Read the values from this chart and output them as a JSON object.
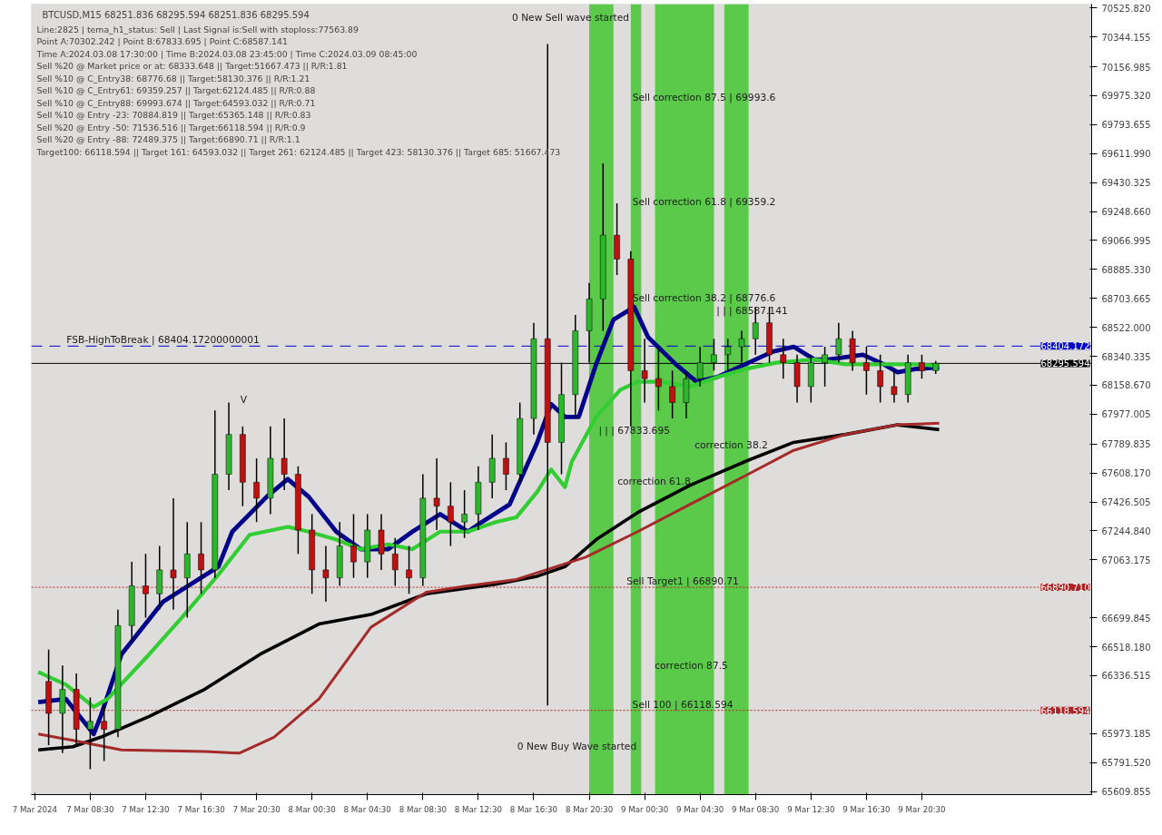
{
  "chart_data": {
    "type": "candlestick",
    "title": "BTCUSD,M15  68251.836 68295.594 68251.836 68295.594",
    "annotations": [
      "Line:2825 | tema_h1_status: Sell | Last Signal is:Sell with stoploss:77563.89",
      "Point A:70302.242 | Point B:67833.695 | Point C:68587.141",
      "Time A:2024.03.08 17:30:00 | Time B:2024.03.08 23:45:00 | Time C:2024.03.09 08:45:00",
      "Sell %20 @ Market price or at: 68333.648 || Target:51667.473 || R/R:1.81",
      "Sell %10 @ C_Entry38: 68776.68 || Target:58130.376 || R/R:1.21",
      "Sell %10 @ C_Entry61: 69359.257 || Target:62124.485 || R/R:0.88",
      "Sell %10 @ C_Entry88: 69993.674 || Target:64593.032 || R/R:0.71",
      "Sell %10 @ Entry -23: 70884.819 || Target:65365.148 || R/R:0.83",
      "Sell %20 @ Entry -50: 71536.516 || Target:66118.594 || R/R:0.9",
      "Sell %20 @ Entry -88: 72489.375 || Target:66890.71 || R/R:1.1",
      "Target100: 66118.594 || Target 161: 64593.032 || Target 261: 62124.485 || Target 423: 58130.376 || Target 685: 51667.473",
      "0 New Sell wave started",
      "0 New Buy Wave started",
      "Sell correction 87.5 | 69993.6",
      "Sell correction 61.8 | 69359.2",
      "Sell correction 38.2 | 68776.6",
      "correction 87.5",
      "V",
      "correction 38.2",
      "correction 61.8",
      {
        "text": "| | | 68587.141",
        "x": "2024-03-09T08:15",
        "y": 68587.141
      },
      {
        "text": "| | | 67833.695",
        "x": "2024-03-08T23:45",
        "y": 67833.695
      },
      {
        "text": "Sell Target1 | 66890.71",
        "x": "2024-03-09T03:15",
        "y": 66890.71
      },
      {
        "text": "Sell 100 | 66118.594",
        "x": "2024-03-09T03:15",
        "y": 66118.594
      },
      {
        "text": "FSB-HighToBreak | 68404.17200000001",
        "x": "2024-03-07T13:45",
        "y": 68404.172
      }
    ],
    "x": [
      "2024-03-07T05:30",
      "2024-03-07T06:30",
      "2024-03-07T07:30",
      "2024-03-07T08:30",
      "2024-03-07T09:30",
      "2024-03-07T10:30",
      "2024-03-07T11:30",
      "2024-03-07T12:30",
      "2024-03-07T13:30",
      "2024-03-07T14:30",
      "2024-03-07T15:30",
      "2024-03-07T16:30",
      "2024-03-07T17:30",
      "2024-03-07T18:30",
      "2024-03-07T19:30",
      "2024-03-07T20:30",
      "2024-03-07T21:30",
      "2024-03-07T22:30",
      "2024-03-07T23:30",
      "2024-03-08T00:30",
      "2024-03-08T01:30",
      "2024-03-08T02:30",
      "2024-03-08T03:30",
      "2024-03-08T04:30",
      "2024-03-08T05:30",
      "2024-03-08T06:30",
      "2024-03-08T07:30",
      "2024-03-08T08:30",
      "2024-03-08T09:30",
      "2024-03-08T10:30",
      "2024-03-08T11:30",
      "2024-03-08T12:30",
      "2024-03-08T13:30",
      "2024-03-08T14:30",
      "2024-03-08T15:30",
      "2024-03-08T16:30",
      "2024-03-08T17:30",
      "2024-03-08T18:30",
      "2024-03-08T19:30",
      "2024-03-08T20:30",
      "2024-03-08T21:30",
      "2024-03-08T22:30",
      "2024-03-08T23:30",
      "2024-03-09T00:30",
      "2024-03-09T01:30",
      "2024-03-09T02:30",
      "2024-03-09T03:30",
      "2024-03-09T04:30",
      "2024-03-09T05:30",
      "2024-03-09T06:30",
      "2024-03-09T07:30",
      "2024-03-09T08:30",
      "2024-03-09T09:30",
      "2024-03-09T10:30",
      "2024-03-09T11:30",
      "2024-03-09T12:30",
      "2024-03-09T13:30",
      "2024-03-09T14:30",
      "2024-03-09T15:30",
      "2024-03-09T16:30",
      "2024-03-09T17:30",
      "2024-03-09T18:30",
      "2024-03-09T19:30",
      "2024-03-09T20:30",
      "2024-03-09T21:30"
    ],
    "ohlc": [
      [
        66300,
        66500,
        65900,
        66100
      ],
      [
        66100,
        66400,
        65850,
        66250
      ],
      [
        66250,
        66350,
        65900,
        66000
      ],
      [
        66000,
        66200,
        65750,
        66050
      ],
      [
        66050,
        66150,
        65800,
        66000
      ],
      [
        66000,
        66750,
        65950,
        66650
      ],
      [
        66650,
        67050,
        66550,
        66900
      ],
      [
        66900,
        67100,
        66700,
        66850
      ],
      [
        66850,
        67150,
        66750,
        67000
      ],
      [
        67000,
        67450,
        66750,
        66950
      ],
      [
        66950,
        67300,
        66700,
        67100
      ],
      [
        67100,
        67300,
        66850,
        67000
      ],
      [
        67000,
        68000,
        66950,
        67600
      ],
      [
        67600,
        68050,
        67500,
        67850
      ],
      [
        67850,
        67900,
        67400,
        67550
      ],
      [
        67550,
        67700,
        67300,
        67450
      ],
      [
        67450,
        67900,
        67350,
        67700
      ],
      [
        67700,
        67950,
        67500,
        67600
      ],
      [
        67600,
        67650,
        67100,
        67250
      ],
      [
        67250,
        67350,
        66850,
        67000
      ],
      [
        67000,
        67150,
        66800,
        66950
      ],
      [
        66950,
        67300,
        66900,
        67150
      ],
      [
        67150,
        67350,
        66950,
        67050
      ],
      [
        67050,
        67350,
        66950,
        67250
      ],
      [
        67250,
        67350,
        67000,
        67100
      ],
      [
        67100,
        67200,
        66900,
        67000
      ],
      [
        67000,
        67150,
        66850,
        66950
      ],
      [
        66950,
        67600,
        66900,
        67450
      ],
      [
        67450,
        67700,
        67250,
        67400
      ],
      [
        67400,
        67550,
        67150,
        67300
      ],
      [
        67300,
        67500,
        67200,
        67350
      ],
      [
        67350,
        67650,
        67250,
        67550
      ],
      [
        67550,
        67850,
        67450,
        67700
      ],
      [
        67700,
        67800,
        67500,
        67600
      ],
      [
        67600,
        68050,
        67550,
        67950
      ],
      [
        67950,
        68550,
        67850,
        68450
      ],
      [
        68450,
        70300,
        66150,
        67800
      ],
      [
        67800,
        68300,
        67600,
        68100
      ],
      [
        68100,
        68600,
        67950,
        68500
      ],
      [
        68500,
        68800,
        68300,
        68700
      ],
      [
        68700,
        69550,
        68500,
        69100
      ],
      [
        69100,
        69300,
        68850,
        68950
      ],
      [
        68950,
        69000,
        67900,
        68250
      ],
      [
        68250,
        68450,
        68050,
        68200
      ],
      [
        68200,
        68400,
        68000,
        68150
      ],
      [
        68150,
        68250,
        67950,
        68050
      ],
      [
        68050,
        68250,
        67950,
        68200
      ],
      [
        68200,
        68400,
        68150,
        68300
      ],
      [
        68300,
        68450,
        68250,
        68350
      ],
      [
        68350,
        68450,
        68250,
        68400
      ],
      [
        68400,
        68500,
        68300,
        68450
      ],
      [
        68450,
        68650,
        68350,
        68550
      ],
      [
        68550,
        68650,
        68300,
        68350
      ],
      [
        68350,
        68450,
        68200,
        68300
      ],
      [
        68300,
        68350,
        68050,
        68150
      ],
      [
        68150,
        68350,
        68050,
        68300
      ],
      [
        68300,
        68400,
        68150,
        68350
      ],
      [
        68350,
        68550,
        68300,
        68450
      ],
      [
        68450,
        68500,
        68250,
        68300
      ],
      [
        68300,
        68400,
        68100,
        68250
      ],
      [
        68250,
        68350,
        68050,
        68150
      ],
      [
        68150,
        68250,
        68050,
        68100
      ],
      [
        68100,
        68350,
        68050,
        68300
      ],
      [
        68300,
        68350,
        68200,
        68250
      ],
      [
        68250,
        68310,
        68230,
        68296
      ]
    ],
    "series": [
      {
        "type": "line",
        "color": "#00008b",
        "x": [
          "2024-03-07T04:45",
          "2024-03-07T06:45",
          "2024-03-07T08:45",
          "2024-03-07T09:15",
          "2024-03-07T10:45",
          "2024-03-07T13:45",
          "2024-03-07T15:45",
          "2024-03-07T17:45",
          "2024-03-07T18:45",
          "2024-03-07T21:15",
          "2024-03-07T22:45",
          "2024-03-08T00:15",
          "2024-03-08T02:15",
          "2024-03-08T04:00",
          "2024-03-08T06:00",
          "2024-03-08T07:45",
          "2024-03-08T09:45",
          "2024-03-08T11:45",
          "2024-03-08T12:45",
          "2024-03-08T14:45",
          "2024-03-08T16:45",
          "2024-03-08T17:45",
          "2024-03-08T18:45",
          "2024-03-08T19:45",
          "2024-03-08T21:00",
          "2024-03-08T22:15",
          "2024-03-08T23:45",
          "2024-03-09T00:45",
          "2024-03-09T02:45",
          "2024-03-09T04:15",
          "2024-03-09T05:45",
          "2024-03-09T07:45",
          "2024-03-09T09:45",
          "2024-03-09T11:15",
          "2024-03-09T12:45",
          "2024-03-09T13:45",
          "2024-03-09T16:15",
          "2024-03-09T17:45",
          "2024-03-09T18:45",
          "2024-03-09T20:00",
          "2024-03-09T21:45"
        ],
        "values": [
          66170,
          66190,
          65970,
          66080,
          66470,
          66800,
          66910,
          67020,
          67240,
          67460,
          67570,
          67460,
          67240,
          67130,
          67130,
          67240,
          67350,
          67240,
          67300,
          67410,
          67800,
          68040,
          67960,
          67960,
          68290,
          68570,
          68650,
          68460,
          68290,
          68180,
          68210,
          68290,
          68370,
          68400,
          68320,
          68320,
          68350,
          68290,
          68240,
          68260,
          68270
        ]
      },
      {
        "type": "line",
        "color": "#32cd32",
        "x": [
          "2024-03-07T04:45",
          "2024-03-07T06:45",
          "2024-03-07T08:45",
          "2024-03-07T09:45",
          "2024-03-07T12:45",
          "2024-03-07T15:00",
          "2024-03-07T17:45",
          "2024-03-07T20:00",
          "2024-03-07T22:45",
          "2024-03-08T00:15",
          "2024-03-08T02:15",
          "2024-03-08T04:00",
          "2024-03-08T06:00",
          "2024-03-08T07:45",
          "2024-03-08T09:45",
          "2024-03-08T11:45",
          "2024-03-08T13:45",
          "2024-03-08T15:15",
          "2024-03-08T16:45",
          "2024-03-08T17:45",
          "2024-03-08T18:45",
          "2024-03-08T19:15",
          "2024-03-08T21:00",
          "2024-03-08T22:45",
          "2024-03-09T00:00",
          "2024-03-09T01:45",
          "2024-03-09T03:45",
          "2024-03-09T05:45",
          "2024-03-09T07:45",
          "2024-03-09T10:00",
          "2024-03-09T12:45",
          "2024-03-09T15:00",
          "2024-03-09T17:45",
          "2024-03-09T20:00",
          "2024-03-09T21:45"
        ],
        "values": [
          66360,
          66280,
          66140,
          66190,
          66470,
          66690,
          66970,
          67220,
          67270,
          67240,
          67190,
          67130,
          67160,
          67130,
          67240,
          67240,
          67300,
          67330,
          67490,
          67630,
          67520,
          67680,
          67960,
          68130,
          68180,
          68180,
          68150,
          68210,
          68260,
          68300,
          68320,
          68290,
          68290,
          68290,
          68280
        ]
      },
      {
        "type": "line",
        "color": "#000000",
        "x": [
          "2024-03-07T04:45",
          "2024-03-07T07:15",
          "2024-03-07T09:15",
          "2024-03-07T12:45",
          "2024-03-07T16:45",
          "2024-03-07T20:45",
          "2024-03-08T01:00",
          "2024-03-08T04:45",
          "2024-03-08T08:45",
          "2024-03-08T13:45",
          "2024-03-08T16:45",
          "2024-03-08T18:45",
          "2024-03-08T21:00",
          "2024-03-09T00:00",
          "2024-03-09T03:45",
          "2024-03-09T07:45",
          "2024-03-09T11:15",
          "2024-03-09T15:00",
          "2024-03-09T18:45",
          "2024-03-09T21:45"
        ],
        "values": [
          65870,
          65890,
          65950,
          66080,
          66250,
          66470,
          66660,
          66720,
          66850,
          66910,
          66960,
          67020,
          67190,
          67360,
          67530,
          67680,
          67800,
          67850,
          67910,
          67880
        ]
      },
      {
        "type": "line",
        "color": "#a52a2a",
        "x": [
          "2024-03-07T04:45",
          "2024-03-07T07:15",
          "2024-03-07T10:45",
          "2024-03-07T16:45",
          "2024-03-07T19:15",
          "2024-03-07T21:45",
          "2024-03-08T01:00",
          "2024-03-08T04:45",
          "2024-03-08T08:45",
          "2024-03-08T11:45",
          "2024-03-08T15:15",
          "2024-03-08T17:45",
          "2024-03-08T20:15",
          "2024-03-09T00:00",
          "2024-03-09T03:45",
          "2024-03-09T07:45",
          "2024-03-09T11:15",
          "2024-03-09T15:00",
          "2024-03-09T18:45",
          "2024-03-09T21:45"
        ],
        "values": [
          65970,
          65930,
          65870,
          65860,
          65850,
          65950,
          66190,
          66640,
          66860,
          66900,
          66940,
          67010,
          67080,
          67240,
          67410,
          67590,
          67750,
          67850,
          67910,
          67920
        ]
      }
    ],
    "ref_lines": [
      {
        "axis": "y",
        "value": 68404.172,
        "label": "68404.172",
        "color": "#0000cd",
        "line_style": "dashed"
      },
      {
        "axis": "y",
        "value": 68295.594,
        "label": "68295.594",
        "color": "#000000",
        "line_style": "solid"
      },
      {
        "axis": "y",
        "value": 66890.71,
        "label": "66890.710",
        "color": "#b22222",
        "line_style": "dotted"
      },
      {
        "axis": "y",
        "value": 66118.594,
        "label": "66118.594",
        "color": "#b22222",
        "line_style": "dotted"
      }
    ],
    "bands": [
      {
        "axis": "x",
        "from": "2024-03-08T20:30",
        "to": "2024-03-08T22:15",
        "color": "#4cc73a"
      },
      {
        "axis": "x",
        "from": "2024-03-08T23:30",
        "to": "2024-03-09T00:15",
        "color": "#4cc73a"
      },
      {
        "axis": "x",
        "from": "2024-03-09T01:15",
        "to": "2024-03-09T05:30",
        "color": "#4cc73a"
      },
      {
        "axis": "x",
        "from": "2024-03-09T06:15",
        "to": "2024-03-09T08:00",
        "color": "#4cc73a"
      }
    ],
    "xlim": [
      "2024-03-07T04:15",
      "2024-03-10T08:45"
    ],
    "xticks": [
      {
        "value": "2024-03-07T04:30",
        "label": "7 Mar 2024"
      },
      {
        "value": "2024-03-07T08:30",
        "label": "7 Mar 08:30"
      },
      {
        "value": "2024-03-07T12:30",
        "label": "7 Mar 12:30"
      },
      {
        "value": "2024-03-07T16:30",
        "label": "7 Mar 16:30"
      },
      {
        "value": "2024-03-07T20:30",
        "label": "7 Mar 20:30"
      },
      {
        "value": "2024-03-08T00:30",
        "label": "8 Mar 00:30"
      },
      {
        "value": "2024-03-08T04:30",
        "label": "8 Mar 04:30"
      },
      {
        "value": "2024-03-08T08:30",
        "label": "8 Mar 08:30"
      },
      {
        "value": "2024-03-08T12:30",
        "label": "8 Mar 12:30"
      },
      {
        "value": "2024-03-08T16:30",
        "label": "8 Mar 16:30"
      },
      {
        "value": "2024-03-08T20:30",
        "label": "8 Mar 20:30"
      },
      {
        "value": "2024-03-09T00:30",
        "label": "9 Mar 00:30"
      },
      {
        "value": "2024-03-09T04:30",
        "label": "9 Mar 04:30"
      },
      {
        "value": "2024-03-09T08:30",
        "label": "9 Mar 08:30"
      },
      {
        "value": "2024-03-09T12:30",
        "label": "9 Mar 12:30"
      },
      {
        "value": "2024-03-09T16:30",
        "label": "9 Mar 16:30"
      },
      {
        "value": "2024-03-09T20:30",
        "label": "9 Mar 20:30"
      }
    ],
    "ylim": [
      65590,
      70550
    ],
    "yticks": [
      {
        "value": 70525.82,
        "label": "70525.820"
      },
      {
        "value": 70344.155,
        "label": "70344.155"
      },
      {
        "value": 70156.985,
        "label": "70156.985"
      },
      {
        "value": 69975.32,
        "label": "69975.320"
      },
      {
        "value": 69793.655,
        "label": "69793.655"
      },
      {
        "value": 69611.99,
        "label": "69611.990"
      },
      {
        "value": 69430.325,
        "label": "69430.325"
      },
      {
        "value": 69248.66,
        "label": "69248.660"
      },
      {
        "value": 69066.995,
        "label": "69066.995"
      },
      {
        "value": 68885.33,
        "label": "68885.330"
      },
      {
        "value": 68703.665,
        "label": "68703.665"
      },
      {
        "value": 68522.0,
        "label": "68522.000"
      },
      {
        "value": 68340.335,
        "label": "68340.335"
      },
      {
        "value": 68158.67,
        "label": "68158.670"
      },
      {
        "value": 67977.005,
        "label": "67977.005"
      },
      {
        "value": 67789.835,
        "label": "67789.835"
      },
      {
        "value": 67608.17,
        "label": "67608.170"
      },
      {
        "value": 67426.505,
        "label": "67426.505"
      },
      {
        "value": 67244.84,
        "label": "67244.840"
      },
      {
        "value": 67063.175,
        "label": "67063.175"
      },
      {
        "value": 66699.845,
        "label": "66699.845"
      },
      {
        "value": 66518.18,
        "label": "66518.180"
      },
      {
        "value": 66336.515,
        "label": "66336.515"
      },
      {
        "value": 65973.185,
        "label": "65973.185"
      },
      {
        "value": 65791.52,
        "label": "65791.520"
      },
      {
        "value": 65609.855,
        "label": "65609.855"
      }
    ],
    "grid": false
  }
}
